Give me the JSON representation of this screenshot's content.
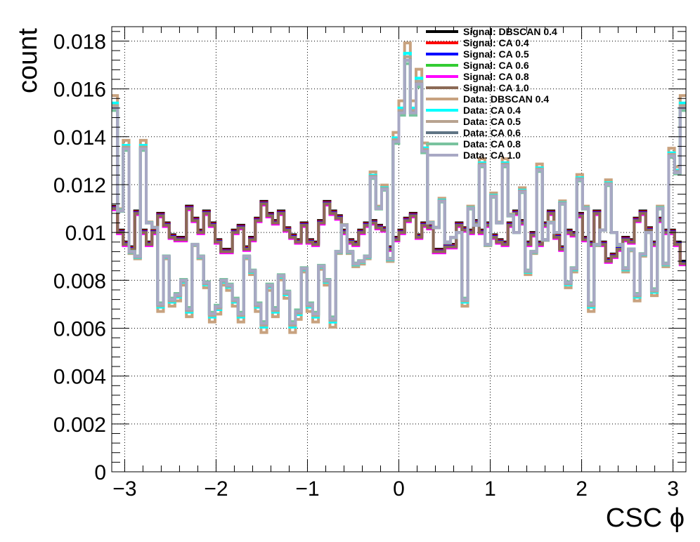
{
  "chart_data": {
    "type": "line",
    "style": "step histogram",
    "xlabel": "CSC ϕ",
    "ylabel": "count",
    "xlim": [
      -3.1416,
      3.1416
    ],
    "ylim": [
      0,
      0.0186
    ],
    "grid": true,
    "legend_position": "top-right",
    "x_ticks": [
      {
        "value": -3,
        "label": "−3"
      },
      {
        "value": -2,
        "label": "−2"
      },
      {
        "value": -1,
        "label": "−1"
      },
      {
        "value": 0,
        "label": "0"
      },
      {
        "value": 1,
        "label": "1"
      },
      {
        "value": 2,
        "label": "2"
      },
      {
        "value": 3,
        "label": "3"
      }
    ],
    "y_ticks": [
      {
        "value": 0,
        "label": "0"
      },
      {
        "value": 0.002,
        "label": "0.002"
      },
      {
        "value": 0.004,
        "label": "0.004"
      },
      {
        "value": 0.006,
        "label": "0.006"
      },
      {
        "value": 0.008,
        "label": "0.008"
      },
      {
        "value": 0.01,
        "label": "0.01"
      },
      {
        "value": 0.012,
        "label": "0.012"
      },
      {
        "value": 0.014,
        "label": "0.014"
      },
      {
        "value": 0.016,
        "label": "0.016"
      },
      {
        "value": 0.018,
        "label": "0.018"
      }
    ],
    "n_bins": 100,
    "signal_base": [
      0.011,
      0.01,
      0.0095,
      0.0093,
      0.0108,
      0.01,
      0.0095,
      0.01,
      0.0107,
      0.0103,
      0.0098,
      0.0097,
      0.0097,
      0.011,
      0.0105,
      0.01,
      0.0108,
      0.0103,
      0.0096,
      0.0092,
      0.0092,
      0.01,
      0.0102,
      0.0093,
      0.0097,
      0.0105,
      0.0112,
      0.0107,
      0.0104,
      0.0108,
      0.0101,
      0.0098,
      0.0096,
      0.0103,
      0.0096,
      0.0095,
      0.0104,
      0.0112,
      0.0108,
      0.0106,
      0.01,
      0.0096,
      0.0095,
      0.01,
      0.0103,
      0.0104,
      0.0102,
      0.0101,
      0.0093,
      0.0097,
      0.01,
      0.0105,
      0.0107,
      0.0098,
      0.0103,
      0.0102,
      0.0092,
      0.0092,
      0.0094,
      0.0094,
      0.0103,
      0.0101,
      0.01,
      0.0104,
      0.01,
      0.0103,
      0.0098,
      0.0096,
      0.0095,
      0.0103,
      0.0108,
      0.0104,
      0.0095,
      0.0099,
      0.0095,
      0.0103,
      0.0108,
      0.0098,
      0.0093,
      0.01,
      0.0099,
      0.0107,
      0.0097,
      0.0095,
      0.0108,
      0.0095,
      0.0088,
      0.009,
      0.0093,
      0.0097,
      0.0096,
      0.0105,
      0.0108,
      0.0101,
      0.0095,
      0.0105,
      0.01,
      0.01,
      0.0095,
      0.0087
    ],
    "data_base": [
      0.0152,
      0.0109,
      0.0135,
      0.0092,
      0.009,
      0.0135,
      0.0104,
      0.0102,
      0.007,
      0.009,
      0.0072,
      0.0074,
      0.008,
      0.0068,
      0.0095,
      0.009,
      0.0079,
      0.0066,
      0.0069,
      0.008,
      0.0078,
      0.0072,
      0.0066,
      0.009,
      0.0084,
      0.007,
      0.0062,
      0.0078,
      0.0068,
      0.0082,
      0.0075,
      0.0062,
      0.0067,
      0.0085,
      0.007,
      0.0066,
      0.0086,
      0.008,
      0.0064,
      0.0092,
      0.0103,
      0.0092,
      0.0087,
      0.0088,
      0.009,
      0.0123,
      0.011,
      0.0118,
      0.0089,
      0.0138,
      0.015,
      0.0172,
      0.015,
      0.0162,
      0.0134,
      0.0104,
      0.0102,
      0.0113,
      0.0096,
      0.0098,
      0.01,
      0.0072,
      0.011,
      0.0103,
      0.0128,
      0.0095,
      0.0115,
      0.0104,
      0.0128,
      0.0107,
      0.01,
      0.0117,
      0.0084,
      0.0092,
      0.0126,
      0.0097,
      0.0104,
      0.01,
      0.0112,
      0.0079,
      0.0085,
      0.0122,
      0.011,
      0.007,
      0.0095,
      0.0101,
      0.012,
      0.01,
      0.0095,
      0.0085,
      0.0093,
      0.0074,
      0.0091,
      0.01,
      0.0076,
      0.011,
      0.0087,
      0.0132,
      0.0125,
      0.0152
    ],
    "series": [
      {
        "name": "Signal: DBSCAN 0.4",
        "color": "#000000",
        "base": "signal",
        "offset": 0.0001
      },
      {
        "name": "Signal: CA 0.4",
        "color": "#ff0000",
        "base": "signal",
        "offset": 6e-05
      },
      {
        "name": "Signal: CA 0.5",
        "color": "#0000ff",
        "base": "signal",
        "offset": 3e-05
      },
      {
        "name": "Signal: CA 0.6",
        "color": "#33cc33",
        "base": "signal",
        "offset": -2e-05
      },
      {
        "name": "Signal: CA 0.8",
        "color": "#ff00ff",
        "base": "signal",
        "offset": -5e-05
      },
      {
        "name": "Signal: CA 1.0",
        "color": "#8b6a55",
        "base": "signal",
        "offset": 0.0
      },
      {
        "name": "Data: DBSCAN 0.4",
        "color": "#c8a27f",
        "base": "data",
        "scale": 1.1
      },
      {
        "name": "Data: CA 0.4",
        "color": "#00ffff",
        "base": "data",
        "scale": 1.04
      },
      {
        "name": "Data: CA 0.5",
        "color": "#b8a390",
        "base": "data",
        "scale": 1.02
      },
      {
        "name": "Data: CA 0.6",
        "color": "#5f7484",
        "base": "data",
        "scale": 1.0
      },
      {
        "name": "Data: CA 0.8",
        "color": "#79c39f",
        "base": "data",
        "scale": 0.98
      },
      {
        "name": "Data: CA 1.0",
        "color": "#a8a8c4",
        "base": "data",
        "scale": 1.0
      }
    ]
  }
}
